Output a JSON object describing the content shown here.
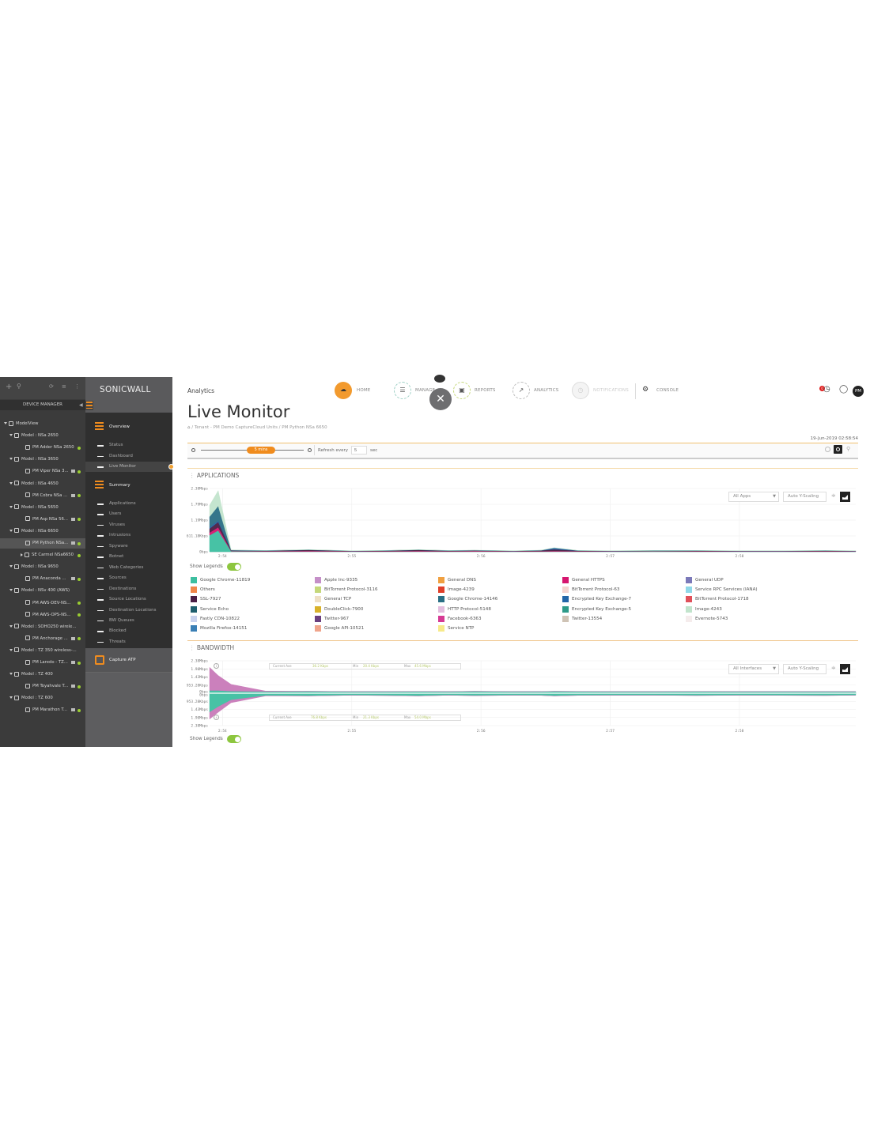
{
  "device_manager": {
    "title": "DEVICE MANAGER",
    "toolbar_icons": [
      "plus-icon",
      "search-icon",
      "refresh-icon",
      "list-icon",
      "more-icon"
    ],
    "tree": [
      {
        "label": "ModelView",
        "level": 0,
        "type": "root"
      },
      {
        "label": "Model : NSa 2650",
        "level": 1,
        "type": "model"
      },
      {
        "label": "PM Adder NSa 2650",
        "level": 2,
        "type": "device",
        "status": "online"
      },
      {
        "label": "Model : NSa 3650",
        "level": 1,
        "type": "model"
      },
      {
        "label": "PM Viper NSa 3...",
        "level": 2,
        "type": "device",
        "status": "online",
        "monitor": true
      },
      {
        "label": "Model : NSa 4650",
        "level": 1,
        "type": "model"
      },
      {
        "label": "PM Cobra NSa ...",
        "level": 2,
        "type": "device",
        "status": "online",
        "monitor": true
      },
      {
        "label": "Model : NSa 5650",
        "level": 1,
        "type": "model"
      },
      {
        "label": "PM Asp NSa 56...",
        "level": 2,
        "type": "device",
        "status": "online",
        "monitor": true
      },
      {
        "label": "Model : NSa 6650",
        "level": 1,
        "type": "model"
      },
      {
        "label": "PM Python NSa...",
        "level": 2,
        "type": "device",
        "status": "online",
        "monitor": true,
        "selected": true
      },
      {
        "label": "SE Carmel NSa6650",
        "level": 2,
        "type": "device-collapsed",
        "status": "online"
      },
      {
        "label": "Model : NSa 9650",
        "level": 1,
        "type": "model"
      },
      {
        "label": "PM Anaconda ...",
        "level": 2,
        "type": "device",
        "status": "online",
        "monitor": true
      },
      {
        "label": "Model : NSv 400 (AWS)",
        "level": 1,
        "type": "model"
      },
      {
        "label": "PM AWS-DEV-NS...",
        "level": 2,
        "type": "device",
        "status": "online"
      },
      {
        "label": "PM AWS-OPS-NS...",
        "level": 2,
        "type": "device",
        "status": "online"
      },
      {
        "label": "Model : SOHO250 wirele...",
        "level": 1,
        "type": "model"
      },
      {
        "label": "PM Anchorage ...",
        "level": 2,
        "type": "device",
        "status": "online",
        "monitor": true
      },
      {
        "label": "Model : TZ 350 wireless-...",
        "level": 1,
        "type": "model"
      },
      {
        "label": "PM Laredo - TZ...",
        "level": 2,
        "type": "device",
        "status": "online",
        "monitor": true
      },
      {
        "label": "Model : TZ 400",
        "level": 1,
        "type": "model"
      },
      {
        "label": "PM Toyahvale T...",
        "level": 2,
        "type": "device",
        "status": "online",
        "monitor": true
      },
      {
        "label": "Model : TZ 600",
        "level": 1,
        "type": "model"
      },
      {
        "label": "PM Marathon T...",
        "level": 2,
        "type": "device",
        "status": "online",
        "monitor": true
      }
    ]
  },
  "sidebar": {
    "logo": "SONICWALL",
    "overview": {
      "label": "Overview",
      "items": [
        "Status",
        "Dashboard",
        "Live Monitor"
      ],
      "active": "Live Monitor"
    },
    "summary": {
      "label": "Summary",
      "items": [
        "Applications",
        "Users",
        "Viruses",
        "Intrusions",
        "Spyware",
        "Botnet",
        "Web Categories",
        "Sources",
        "Destinations",
        "Source Locations",
        "Destination Locations",
        "BW Queues",
        "Blocked",
        "Threats"
      ]
    },
    "capture_atp": "Capture ATP"
  },
  "header": {
    "section": "Analytics",
    "nav": [
      {
        "label": "HOME",
        "icon": "cloud-icon",
        "active": true
      },
      {
        "label": "MANAGE",
        "icon": "list-icon"
      },
      {
        "label": "REPORTS",
        "icon": "report-icon"
      },
      {
        "label": "ANALYTICS",
        "icon": "analytics-icon"
      },
      {
        "label": "NOTIFICATIONS",
        "icon": "alarm-icon",
        "disabled": true
      },
      {
        "label": "CONSOLE",
        "icon": "gear-icon"
      }
    ],
    "avatar": "PM",
    "alert_count": "0"
  },
  "page": {
    "title": "Live Monitor",
    "breadcrumb": [
      "Tenant - PM Demo CaptureCloud Units",
      "PM Python NSa 6650"
    ],
    "timestamp": "19-Jun-2019 02:58:54",
    "time_window": "5 mins",
    "refresh_label": "Refresh every",
    "refresh_value": "5",
    "refresh_unit": "sec"
  },
  "applications": {
    "title": "APPLICATIONS",
    "filter": "All Apps",
    "scaling": "Auto Y-Scaling",
    "show_legends": "Show Legends",
    "legend_columns": [
      [
        {
          "label": "Google Chrome-11819",
          "color": "#3dbfa0"
        },
        {
          "label": "Others",
          "color": "#f0874a"
        },
        {
          "label": "SSL-7927",
          "color": "#4a1f45"
        },
        {
          "label": "Service Echo",
          "color": "#1f5f6e"
        },
        {
          "label": "Fastly CDN-10822",
          "color": "#c9d3ee"
        },
        {
          "label": "Mozilla Firefox-14151",
          "color": "#3a7fb5"
        }
      ],
      [
        {
          "label": "Apple Inc-9335",
          "color": "#c58fc8"
        },
        {
          "label": "BitTorrent Protocol-3116",
          "color": "#c5d87a"
        },
        {
          "label": "General TCP",
          "color": "#efe0c5"
        },
        {
          "label": "DoubleClick-7900",
          "color": "#d8b12a"
        },
        {
          "label": "Twitter-967",
          "color": "#6a3f7f"
        },
        {
          "label": "Google API-10521",
          "color": "#f0a58c"
        }
      ],
      [
        {
          "label": "General DNS",
          "color": "#f0a040"
        },
        {
          "label": "Image-4239",
          "color": "#e0402a"
        },
        {
          "label": "Google Chrome-14146",
          "color": "#2a6f85"
        },
        {
          "label": "HTTP Protocol-5148",
          "color": "#e3bedf"
        },
        {
          "label": "Facebook-6363",
          "color": "#d63a94"
        },
        {
          "label": "Service NTP",
          "color": "#f7ea8a"
        }
      ],
      [
        {
          "label": "General HTTPS",
          "color": "#d6166f"
        },
        {
          "label": "BitTorrent Protocol-63",
          "color": "#f5d5d0"
        },
        {
          "label": "Encrypted Key Exchange-7",
          "color": "#2466a8"
        },
        {
          "label": "Encrypted Key Exchange-5",
          "color": "#2e9a88"
        },
        {
          "label": "Twitter-13554",
          "color": "#cfc3b5"
        }
      ],
      [
        {
          "label": "General UDP",
          "color": "#7b79b9"
        },
        {
          "label": "Service RPC Services (IANA)",
          "color": "#8fd8e8"
        },
        {
          "label": "BitTorrent Protocol-1718",
          "color": "#e0505a"
        },
        {
          "label": "Image-4243",
          "color": "#c2e4cc"
        },
        {
          "label": "Evernote-5743",
          "color": "#f5ecec"
        }
      ]
    ]
  },
  "bandwidth": {
    "title": "BANDWIDTH",
    "filter": "All Interfaces",
    "scaling": "Auto Y-Scaling",
    "show_legends": "Show Legends",
    "upper_stats": {
      "cur_label": "Current Ave",
      "cur": "36.2 Kbps",
      "min_label": "Min",
      "min": "20.4 Kbps",
      "max_label": "Max",
      "max": "45.6 Mbps"
    },
    "lower_stats": {
      "cur_label": "Current Ave",
      "cur": "76.8 Kbps",
      "min_label": "Min",
      "min": "21.3 Kbps",
      "max_label": "Max",
      "max": "54.0 Mbps"
    }
  },
  "chart_data": [
    {
      "type": "area",
      "stacked": true,
      "x_range": [
        "2:53:54",
        "2:58:54"
      ],
      "x_ticks": [
        "2:54",
        "2:55",
        "2:56",
        "2:57",
        "2:58"
      ],
      "y_ticks": [
        "0bps",
        "611.18Kbps",
        "1.19Mbps",
        "1.79Mbps",
        "2.38Mbps"
      ],
      "ylim_mbps": [
        0,
        2.38
      ],
      "grid": true,
      "x": [
        "2:53:54",
        "2:53:58",
        "2:54:04",
        "2:54:20",
        "2:54:40",
        "2:55:00",
        "2:55:15",
        "2:55:31",
        "2:55:45",
        "2:55:57",
        "2:56:15",
        "2:56:28",
        "2:56:34",
        "2:56:45",
        "2:57:00",
        "2:57:20",
        "2:57:40",
        "2:58:00",
        "2:58:20",
        "2:58:40",
        "2:58:54"
      ],
      "series": [
        {
          "name": "Google Chrome-11819",
          "color": "#3dbfa0",
          "values": [
            0.62,
            0.8,
            0.02,
            0.01,
            0.01,
            0.01,
            0.01,
            0.01,
            0.01,
            0.01,
            0.01,
            0.01,
            0.01,
            0.01,
            0.01,
            0.02,
            0.01,
            0.01,
            0.01,
            0.01,
            0.01
          ]
        },
        {
          "name": "General HTTPS",
          "color": "#d6166f",
          "values": [
            0.1,
            0.12,
            0.01,
            0.01,
            0.02,
            0.01,
            0.01,
            0.02,
            0.01,
            0.02,
            0.01,
            0.01,
            0.02,
            0.01,
            0.01,
            0.01,
            0.01,
            0.01,
            0.01,
            0.01,
            0.01
          ]
        },
        {
          "name": "SSL-7927",
          "color": "#4a1f45",
          "values": [
            0.15,
            0.2,
            0.02,
            0.02,
            0.04,
            0.01,
            0.02,
            0.04,
            0.02,
            0.02,
            0.01,
            0.03,
            0.06,
            0.02,
            0.01,
            0.01,
            0.02,
            0.01,
            0.01,
            0.02,
            0.01
          ]
        },
        {
          "name": "Encrypted Key Exchange-7",
          "color": "#2466a8",
          "values": [
            0.05,
            0.05,
            0,
            0,
            0,
            0,
            0,
            0,
            0,
            0,
            0,
            0,
            0.05,
            0,
            0,
            0,
            0,
            0,
            0,
            0,
            0
          ]
        },
        {
          "name": "Google Chrome-14146",
          "color": "#2a6f85",
          "values": [
            0.4,
            0.55,
            0.01,
            0.005,
            0.005,
            0.005,
            0.005,
            0.005,
            0.005,
            0.005,
            0.005,
            0.005,
            0.005,
            0.005,
            0.005,
            0.005,
            0.005,
            0.005,
            0.005,
            0.005,
            0.005
          ]
        },
        {
          "name": "Image-4243",
          "color": "#c2e4cc",
          "values": [
            0.43,
            0.58,
            0.01,
            0.005,
            0.005,
            0.005,
            0.005,
            0.005,
            0.005,
            0.005,
            0.005,
            0.005,
            0.005,
            0.005,
            0.005,
            0.005,
            0.005,
            0.005,
            0.005,
            0.005,
            0.005
          ]
        }
      ]
    },
    {
      "type": "area",
      "mirrored": true,
      "x_range": [
        "2:53:54",
        "2:58:54"
      ],
      "x_ticks": [
        "2:54",
        "2:55",
        "2:56",
        "2:57",
        "2:58"
      ],
      "y_ticks_upper": [
        "0bps",
        "953.28Kbps",
        "1.43Mbps",
        "1.90Mbps",
        "2.38Mbps"
      ],
      "y_ticks_lower": [
        "0bps",
        "953.28Kbps",
        "1.43Mbps",
        "1.90Mbps",
        "2.38Mbps"
      ],
      "ylim_mbps": [
        -2.38,
        2.38
      ],
      "grid": true,
      "x": [
        "2:53:54",
        "2:53:58",
        "2:54:04",
        "2:54:20",
        "2:54:40",
        "2:55:00",
        "2:55:15",
        "2:55:31",
        "2:55:45",
        "2:55:57",
        "2:56:15",
        "2:56:28",
        "2:56:34",
        "2:56:45",
        "2:57:00",
        "2:57:20",
        "2:57:40",
        "2:58:00",
        "2:58:20",
        "2:58:40",
        "2:58:54"
      ],
      "upper": [
        {
          "color": "#3dbfa0",
          "values": [
            0.2,
            0.2,
            0.15,
            0.12,
            0.14,
            0.12,
            0.12,
            0.13,
            0.12,
            0.14,
            0.12,
            0.12,
            0.14,
            0.13,
            0.12,
            0.12,
            0.13,
            0.12,
            0.12,
            0.12,
            0.12
          ]
        },
        {
          "color": "#c879b8",
          "values": [
            1.7,
            1.1,
            0.5,
            0.04,
            0,
            0,
            0,
            0,
            0,
            0,
            0,
            0,
            0,
            0,
            0,
            0,
            0,
            0,
            0,
            0,
            0
          ]
        }
      ],
      "lower": [
        {
          "color": "#3dbfa0",
          "values": [
            1.4,
            1.0,
            0.5,
            0.18,
            0.2,
            0.15,
            0.17,
            0.2,
            0.15,
            0.18,
            0.15,
            0.16,
            0.2,
            0.16,
            0.15,
            0.15,
            0.17,
            0.15,
            0.16,
            0.17,
            0.15
          ]
        },
        {
          "color": "#c879b8",
          "values": [
            0.5,
            0.4,
            0.2,
            0.02,
            0,
            0,
            0,
            0,
            0,
            0,
            0,
            0,
            0,
            0,
            0,
            0,
            0,
            0,
            0,
            0,
            0
          ]
        }
      ]
    }
  ]
}
